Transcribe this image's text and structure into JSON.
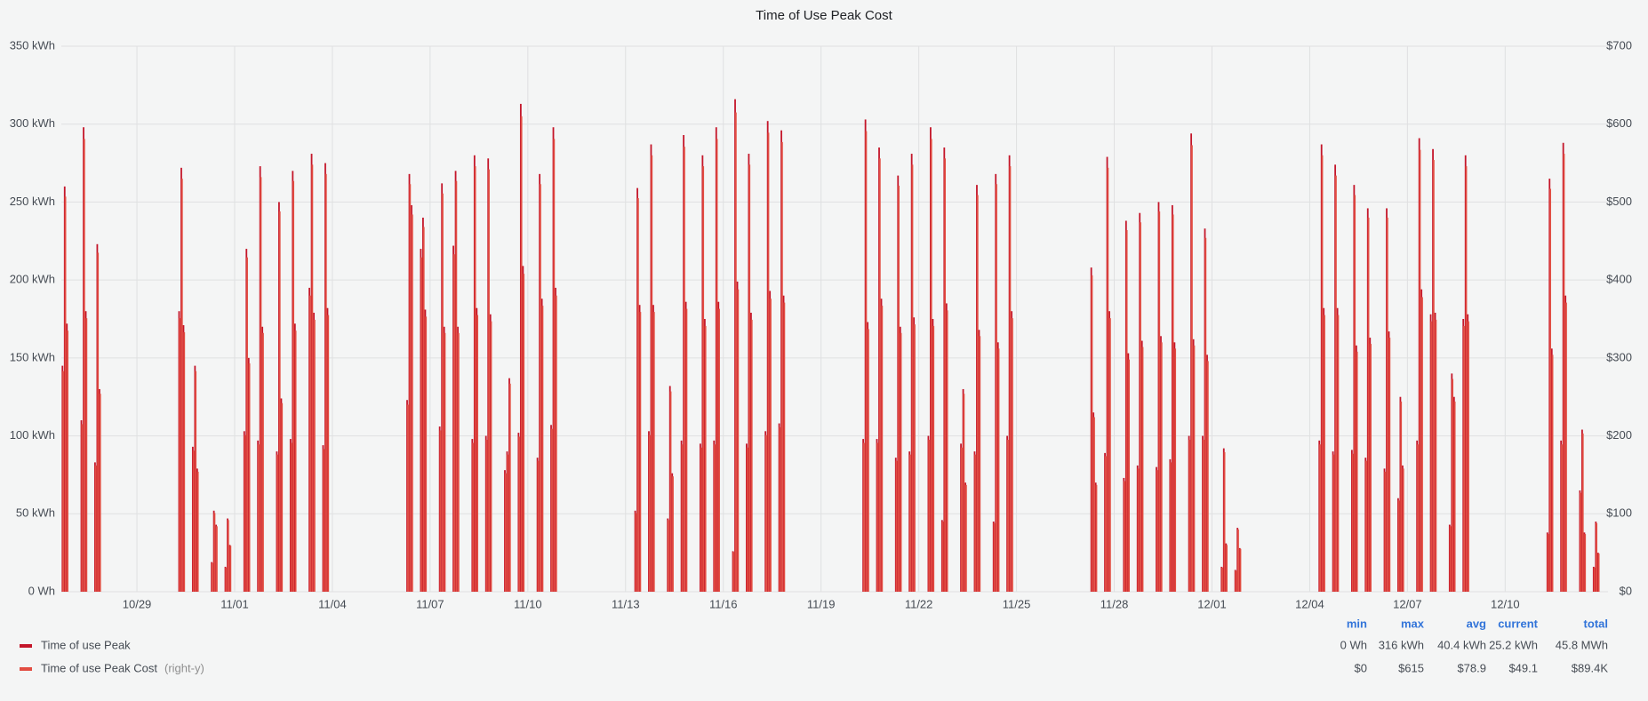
{
  "chart_data": {
    "type": "bar",
    "title": "Time of Use Peak Cost",
    "categories": [
      null,
      null,
      null,
      "10/29",
      null,
      null,
      "11/01",
      null,
      null,
      "11/04",
      null,
      null,
      "11/07",
      null,
      null,
      "11/10",
      null,
      null,
      "11/13",
      null,
      null,
      "11/16",
      null,
      null,
      "11/19",
      null,
      null,
      "11/22",
      null,
      null,
      "11/25",
      null,
      null,
      "11/28",
      null,
      null,
      "12/01",
      null,
      null,
      "12/04",
      null,
      null,
      "12/07",
      null,
      null,
      "12/10",
      null,
      null,
      null
    ],
    "ylim": [
      0,
      350
    ],
    "yticks": [
      {
        "value": 0,
        "label": "0 Wh"
      },
      {
        "value": 50,
        "label": "50 kWh"
      },
      {
        "value": 100,
        "label": "100 kWh"
      },
      {
        "value": 150,
        "label": "150 kWh"
      },
      {
        "value": 200,
        "label": "200 kWh"
      },
      {
        "value": 250,
        "label": "250 kWh"
      },
      {
        "value": 300,
        "label": "300 kWh"
      },
      {
        "value": 350,
        "label": "350 kWh"
      }
    ],
    "y2lim": [
      0,
      700
    ],
    "y2ticks": [
      {
        "value": 0,
        "label": "$0"
      },
      {
        "value": 100,
        "label": "$100"
      },
      {
        "value": 200,
        "label": "$200"
      },
      {
        "value": 300,
        "label": "$300"
      },
      {
        "value": 400,
        "label": "$400"
      },
      {
        "value": 500,
        "label": "$500"
      },
      {
        "value": 600,
        "label": "$600"
      },
      {
        "value": 700,
        "label": "$700"
      }
    ],
    "grid": true,
    "legend_columns": [
      "min",
      "max",
      "avg",
      "current",
      "total"
    ],
    "series": [
      {
        "name": "Time of use Peak",
        "color": "#c4162a",
        "stats": [
          "0 Wh",
          "316 kWh",
          "40.4 kWh",
          "25.2 kWh",
          "45.8 MWh"
        ],
        "values": [
          [
            null,
            null,
            null,
            145,
            260,
            172
          ],
          [
            110,
            298,
            180,
            83,
            223,
            130
          ],
          null,
          null,
          [
            180,
            272,
            171,
            93,
            145,
            79
          ],
          [
            19,
            52,
            43,
            16,
            47,
            30
          ],
          [
            103,
            220,
            150,
            97,
            273,
            170
          ],
          [
            90,
            250,
            124,
            98,
            270,
            172
          ],
          [
            195,
            281,
            179,
            94,
            275,
            182
          ],
          null,
          null,
          [
            123,
            268,
            248,
            220,
            240,
            181
          ],
          [
            106,
            262,
            170,
            222,
            270,
            170
          ],
          [
            98,
            280,
            182,
            100,
            278,
            178
          ],
          [
            78,
            90,
            137,
            102,
            313,
            209
          ],
          [
            86,
            268,
            188,
            107,
            298,
            195
          ],
          null,
          null,
          [
            52,
            259,
            184,
            103,
            287,
            184
          ],
          [
            47,
            132,
            76,
            97,
            293,
            186
          ],
          [
            95,
            280,
            175,
            97,
            298,
            186
          ],
          [
            26,
            316,
            199,
            95,
            281,
            179
          ],
          [
            103,
            302,
            193,
            108,
            296,
            190
          ],
          null,
          null,
          [
            98,
            303,
            173,
            98,
            285,
            188
          ],
          [
            86,
            267,
            170,
            90,
            281,
            176
          ],
          [
            100,
            298,
            175,
            46,
            285,
            185
          ],
          [
            95,
            130,
            70,
            90,
            261,
            168
          ],
          [
            45,
            268,
            160,
            100,
            280,
            180
          ],
          null,
          null,
          [
            208,
            115,
            70,
            89,
            279,
            180
          ],
          [
            73,
            238,
            153,
            81,
            243,
            161
          ],
          [
            80,
            250,
            164,
            85,
            248,
            160
          ],
          [
            100,
            294,
            162,
            100,
            233,
            152
          ],
          [
            16,
            92,
            31,
            14,
            41,
            28
          ],
          null,
          null,
          [
            97,
            287,
            182,
            90,
            274,
            182
          ],
          [
            91,
            261,
            158,
            86,
            246,
            163
          ],
          [
            79,
            246,
            167,
            60,
            125,
            81
          ],
          [
            97,
            291,
            194,
            178,
            284,
            179
          ],
          [
            43,
            140,
            125,
            175,
            280,
            178
          ],
          null,
          null,
          [
            38,
            265,
            156,
            97,
            288,
            190
          ],
          [
            65,
            104,
            38,
            16,
            45,
            25
          ],
          null
        ]
      },
      {
        "name": "Time of use Peak Cost",
        "color": "#e24d42",
        "axis": "y2",
        "legend_note": "(right-y)",
        "stats": [
          "$0",
          "$615",
          "$78.9",
          "$49.1",
          "$89.4K"
        ],
        "values": [
          [
            null,
            null,
            null,
            283,
            507,
            335
          ],
          [
            215,
            581,
            351,
            162,
            435,
            254
          ],
          null,
          null,
          [
            351,
            530,
            333,
            181,
            283,
            154
          ],
          [
            37,
            101,
            84,
            31,
            92,
            59
          ],
          [
            201,
            429,
            293,
            189,
            532,
            332
          ],
          [
            176,
            488,
            242,
            191,
            527,
            335
          ],
          [
            380,
            548,
            349,
            183,
            536,
            355
          ],
          null,
          null,
          [
            240,
            523,
            484,
            429,
            468,
            353
          ],
          [
            207,
            511,
            332,
            433,
            527,
            332
          ],
          [
            191,
            546,
            355,
            195,
            542,
            347
          ],
          [
            152,
            176,
            267,
            199,
            610,
            408
          ],
          [
            168,
            523,
            367,
            209,
            581,
            380
          ],
          null,
          null,
          [
            101,
            505,
            359,
            201,
            560,
            359
          ],
          [
            92,
            257,
            148,
            189,
            571,
            363
          ],
          [
            185,
            546,
            341,
            189,
            581,
            363
          ],
          [
            51,
            615,
            388,
            185,
            548,
            349
          ],
          [
            201,
            589,
            376,
            211,
            577,
            371
          ],
          null,
          null,
          [
            191,
            591,
            337,
            191,
            556,
            367
          ],
          [
            168,
            521,
            332,
            176,
            548,
            343
          ],
          [
            195,
            581,
            341,
            90,
            556,
            361
          ],
          [
            185,
            254,
            137,
            176,
            509,
            328
          ],
          [
            88,
            523,
            312,
            195,
            546,
            351
          ],
          null,
          null,
          [
            406,
            224,
            137,
            174,
            544,
            351
          ],
          [
            142,
            464,
            298,
            158,
            474,
            314
          ],
          [
            156,
            488,
            320,
            166,
            484,
            312
          ],
          [
            195,
            573,
            316,
            195,
            454,
            296
          ],
          [
            31,
            179,
            60,
            27,
            80,
            55
          ],
          null,
          null,
          [
            189,
            560,
            355,
            176,
            534,
            355
          ],
          [
            177,
            509,
            308,
            168,
            480,
            318
          ],
          [
            154,
            480,
            326,
            117,
            244,
            158
          ],
          [
            189,
            567,
            378,
            347,
            554,
            349
          ],
          [
            84,
            273,
            244,
            341,
            546,
            347
          ],
          null,
          null,
          [
            74,
            517,
            304,
            189,
            562,
            371
          ],
          [
            127,
            203,
            74,
            31,
            88,
            49
          ],
          null
        ]
      }
    ]
  }
}
